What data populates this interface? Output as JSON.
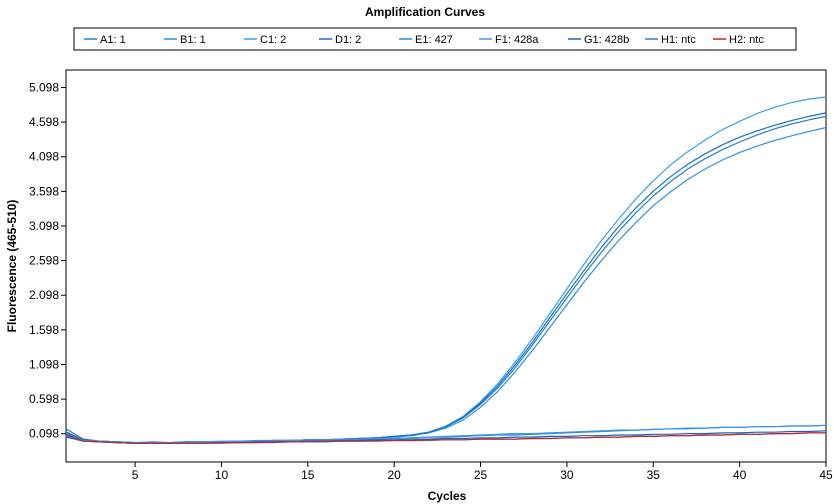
{
  "chart_data": {
    "type": "line",
    "title": "Amplification Curves",
    "xlabel": "Cycles",
    "ylabel": "Fluorescence (465-510)",
    "xlim": [
      1,
      45
    ],
    "ylim": [
      -0.31,
      5.35
    ],
    "xticks": [
      5,
      10,
      15,
      20,
      25,
      30,
      35,
      40,
      45
    ],
    "yticks": [
      0.098,
      0.598,
      1.098,
      1.598,
      2.098,
      2.598,
      3.098,
      3.598,
      4.098,
      4.598,
      5.098
    ],
    "ytick_labels": [
      "0.098",
      "0.598",
      "1.098",
      "1.598",
      "2.098",
      "2.598",
      "3.098",
      "3.598",
      "4.098",
      "4.598",
      "5.098"
    ],
    "legend_position": "top",
    "grid": false,
    "x": [
      1,
      2,
      3,
      4,
      5,
      6,
      7,
      8,
      9,
      10,
      11,
      12,
      13,
      14,
      15,
      16,
      17,
      18,
      19,
      20,
      21,
      22,
      23,
      24,
      25,
      26,
      27,
      28,
      29,
      30,
      31,
      32,
      33,
      34,
      35,
      36,
      37,
      38,
      39,
      40,
      41,
      42,
      43,
      44,
      45
    ],
    "series": [
      {
        "name": "A1: 1",
        "color": "#1f7fd6",
        "values": [
          0.17,
          0.02,
          -0.01,
          -0.02,
          -0.03,
          -0.03,
          -0.03,
          -0.03,
          -0.02,
          -0.02,
          -0.01,
          -0.01,
          0.0,
          0.0,
          0.01,
          0.01,
          0.02,
          0.03,
          0.04,
          0.06,
          0.08,
          0.12,
          0.2,
          0.33,
          0.52,
          0.76,
          1.05,
          1.38,
          1.72,
          2.06,
          2.4,
          2.72,
          3.02,
          3.29,
          3.53,
          3.74,
          3.92,
          4.07,
          4.2,
          4.31,
          4.41,
          4.5,
          4.57,
          4.63,
          4.68
        ]
      },
      {
        "name": "B1: 1",
        "color": "#2d90e0",
        "values": [
          0.13,
          0.0,
          -0.01,
          -0.02,
          -0.03,
          -0.02,
          -0.03,
          -0.02,
          -0.02,
          -0.01,
          -0.01,
          0.0,
          0.0,
          0.0,
          0.01,
          0.01,
          0.02,
          0.03,
          0.04,
          0.05,
          0.07,
          0.11,
          0.18,
          0.3,
          0.48,
          0.71,
          0.99,
          1.3,
          1.63,
          1.96,
          2.29,
          2.6,
          2.89,
          3.15,
          3.39,
          3.59,
          3.77,
          3.92,
          4.05,
          4.16,
          4.25,
          4.33,
          4.4,
          4.46,
          4.52
        ]
      },
      {
        "name": "C1: 2",
        "color": "#3aa0e8",
        "values": [
          0.1,
          0.0,
          -0.01,
          -0.02,
          -0.03,
          -0.03,
          -0.03,
          -0.03,
          -0.02,
          -0.02,
          -0.01,
          -0.01,
          0.0,
          0.0,
          0.01,
          0.01,
          0.02,
          0.03,
          0.04,
          0.06,
          0.08,
          0.12,
          0.21,
          0.35,
          0.56,
          0.82,
          1.13,
          1.47,
          1.83,
          2.19,
          2.55,
          2.89,
          3.2,
          3.49,
          3.75,
          3.98,
          4.17,
          4.34,
          4.49,
          4.61,
          4.72,
          4.81,
          4.88,
          4.93,
          4.96
        ]
      },
      {
        "name": "D1: 2",
        "color": "#1a70c8",
        "values": [
          0.12,
          0.01,
          -0.01,
          -0.02,
          -0.03,
          -0.03,
          -0.03,
          -0.02,
          -0.02,
          -0.02,
          -0.01,
          -0.01,
          0.0,
          0.0,
          0.01,
          0.01,
          0.02,
          0.03,
          0.04,
          0.06,
          0.08,
          0.12,
          0.2,
          0.34,
          0.54,
          0.79,
          1.09,
          1.42,
          1.77,
          2.12,
          2.46,
          2.79,
          3.09,
          3.36,
          3.6,
          3.81,
          3.99,
          4.14,
          4.27,
          4.38,
          4.47,
          4.55,
          4.62,
          4.68,
          4.73
        ]
      },
      {
        "name": "E1: 427",
        "color": "#2b88dc",
        "values": [
          0.06,
          0.0,
          -0.02,
          -0.03,
          -0.04,
          -0.04,
          -0.04,
          -0.04,
          -0.03,
          -0.03,
          -0.02,
          -0.02,
          -0.01,
          -0.01,
          0.0,
          0.0,
          0.01,
          0.01,
          0.02,
          0.03,
          0.04,
          0.05,
          0.05,
          0.06,
          0.07,
          0.08,
          0.08,
          0.09,
          0.1,
          0.11,
          0.12,
          0.13,
          0.14,
          0.15,
          0.16,
          0.17,
          0.17,
          0.18,
          0.19,
          0.19,
          0.2,
          0.2,
          0.21,
          0.21,
          0.22
        ]
      },
      {
        "name": "F1: 428a",
        "color": "#3b96e6",
        "values": [
          0.08,
          0.0,
          -0.01,
          -0.02,
          -0.03,
          -0.03,
          -0.03,
          -0.03,
          -0.02,
          -0.02,
          -0.01,
          -0.01,
          0.0,
          0.0,
          0.01,
          0.01,
          0.02,
          0.02,
          0.03,
          0.03,
          0.04,
          0.05,
          0.06,
          0.07,
          0.08,
          0.09,
          0.1,
          0.1,
          0.11,
          0.12,
          0.13,
          0.14,
          0.15,
          0.15,
          0.16,
          0.17,
          0.18,
          0.18,
          0.19,
          0.19,
          0.2,
          0.2,
          0.21,
          0.21,
          0.22
        ]
      },
      {
        "name": "G1: 428b",
        "color": "#1565c0",
        "values": [
          0.05,
          -0.01,
          -0.02,
          -0.03,
          -0.04,
          -0.04,
          -0.04,
          -0.04,
          -0.04,
          -0.03,
          -0.03,
          -0.02,
          -0.02,
          -0.02,
          -0.01,
          -0.01,
          0.0,
          0.0,
          0.01,
          0.01,
          0.02,
          0.02,
          0.03,
          0.03,
          0.04,
          0.04,
          0.05,
          0.05,
          0.06,
          0.06,
          0.07,
          0.07,
          0.08,
          0.08,
          0.09,
          0.09,
          0.1,
          0.1,
          0.11,
          0.11,
          0.12,
          0.12,
          0.13,
          0.13,
          0.14
        ]
      },
      {
        "name": "H1: ntc",
        "color": "#2a7fd4",
        "values": [
          0.07,
          -0.01,
          -0.02,
          -0.03,
          -0.04,
          -0.04,
          -0.04,
          -0.04,
          -0.04,
          -0.04,
          -0.03,
          -0.03,
          -0.03,
          -0.02,
          -0.02,
          -0.02,
          -0.01,
          -0.01,
          -0.01,
          0.0,
          0.0,
          0.0,
          0.01,
          0.01,
          0.02,
          0.02,
          0.02,
          0.03,
          0.03,
          0.04,
          0.04,
          0.05,
          0.05,
          0.06,
          0.06,
          0.07,
          0.07,
          0.08,
          0.08,
          0.09,
          0.09,
          0.1,
          0.1,
          0.11,
          0.11
        ]
      },
      {
        "name": "H2: ntc",
        "color": "#cc2222",
        "values": [
          0.09,
          -0.01,
          -0.02,
          -0.03,
          -0.04,
          -0.04,
          -0.04,
          -0.04,
          -0.04,
          -0.03,
          -0.03,
          -0.03,
          -0.02,
          -0.02,
          -0.02,
          -0.01,
          -0.01,
          -0.01,
          0.0,
          0.0,
          0.0,
          0.01,
          0.01,
          0.01,
          0.02,
          0.02,
          0.02,
          0.03,
          0.03,
          0.04,
          0.04,
          0.05,
          0.05,
          0.06,
          0.06,
          0.07,
          0.07,
          0.08,
          0.08,
          0.09,
          0.09,
          0.1,
          0.1,
          0.11,
          0.11
        ]
      }
    ]
  }
}
